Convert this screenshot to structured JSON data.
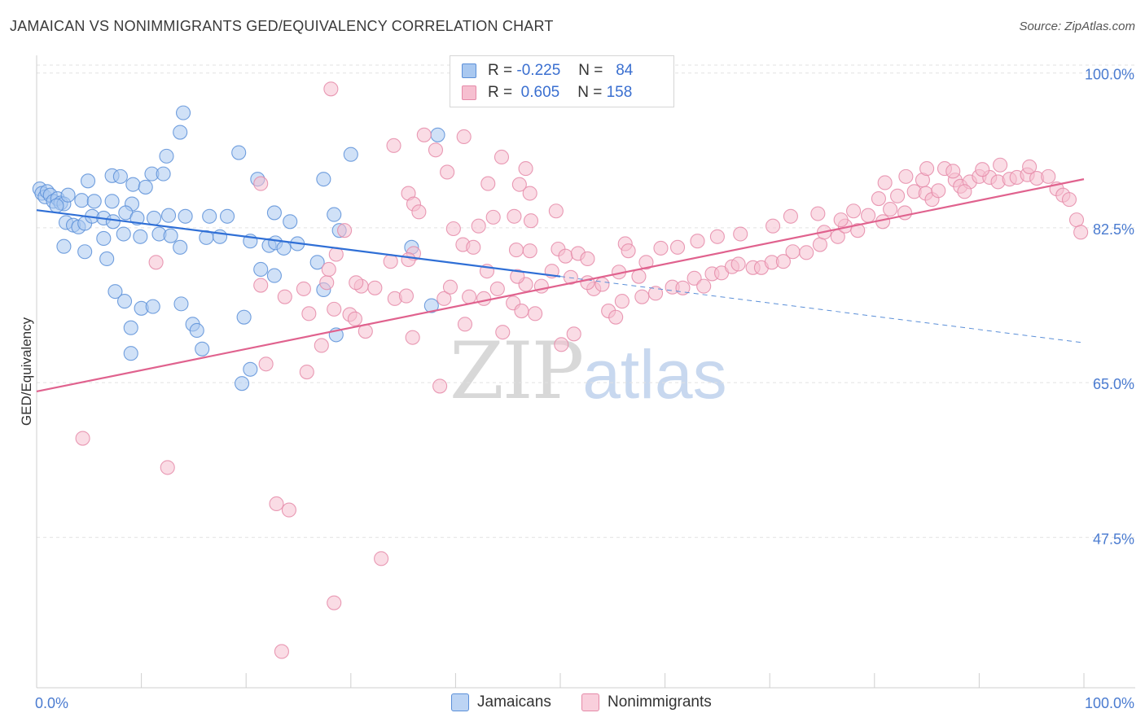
{
  "header": {
    "title": "JAMAICAN VS NONIMMIGRANTS GED/EQUIVALENCY CORRELATION CHART",
    "source": "Source: ZipAtlas.com"
  },
  "watermark": {
    "zip": "ZIP",
    "atlas": "atlas"
  },
  "legend": {
    "rows": [
      {
        "r_label": "R =",
        "r_value": "-0.225",
        "n_label": "N =",
        "n_value": "84",
        "color": "#a9c8f0",
        "border": "#5b8fd8"
      },
      {
        "r_label": "R =",
        "r_value": "0.605",
        "n_label": "N =",
        "n_value": "158",
        "color": "#f6bfd0",
        "border": "#e58aa8"
      }
    ]
  },
  "bottom_legend": {
    "items": [
      {
        "label": "Jamaicans",
        "color": "#bcd4f4",
        "border": "#5b8fd8"
      },
      {
        "label": "Nonimmigrants",
        "color": "#f9cfdc",
        "border": "#e58aa8"
      }
    ]
  },
  "chart_data": {
    "type": "scatter",
    "title": "JAMAICAN VS NONIMMIGRANTS GED/EQUIVALENCY CORRELATION CHART",
    "xlabel": "",
    "ylabel": "GED/Equivalency",
    "xlim": [
      0,
      100
    ],
    "ylim": [
      30.5,
      102
    ],
    "x_tick_labels": [
      "0.0%",
      "100.0%"
    ],
    "y_ticks": [
      {
        "value": 100,
        "label": "100.0%"
      },
      {
        "value": 82.5,
        "label": "82.5%"
      },
      {
        "value": 65,
        "label": "65.0%"
      },
      {
        "value": 47.5,
        "label": "47.5%"
      }
    ],
    "grid": "horizontal-dashed",
    "legend_position": "top-center",
    "series": [
      {
        "name": "Jamaicans",
        "color": "#5b8fd8",
        "fill": "#a9c8f0",
        "trend": {
          "x0": 0,
          "y0": 84.5,
          "x1": 50,
          "y1": 77.0,
          "dash_to_x": 100,
          "dash_to_y": 69.5
        },
        "points": [
          [
            0.3,
            86.9
          ],
          [
            0.5,
            86.4
          ],
          [
            0.8,
            86.0
          ],
          [
            1.0,
            86.6
          ],
          [
            1.3,
            86.2
          ],
          [
            1.6,
            85.5
          ],
          [
            2.0,
            85.8
          ],
          [
            2.3,
            85.3
          ],
          [
            2.6,
            85.2
          ],
          [
            3.0,
            86.2
          ],
          [
            1.9,
            85.0
          ],
          [
            4.3,
            85.6
          ],
          [
            5.5,
            85.5
          ],
          [
            7.2,
            85.5
          ],
          [
            9.1,
            85.2
          ],
          [
            2.8,
            83.1
          ],
          [
            3.5,
            82.8
          ],
          [
            4.0,
            82.6
          ],
          [
            4.6,
            83.0
          ],
          [
            5.3,
            83.8
          ],
          [
            6.4,
            83.6
          ],
          [
            7.3,
            83.2
          ],
          [
            8.5,
            84.2
          ],
          [
            9.6,
            83.6
          ],
          [
            11.2,
            83.6
          ],
          [
            12.6,
            83.9
          ],
          [
            14.2,
            83.8
          ],
          [
            16.5,
            83.8
          ],
          [
            18.2,
            83.8
          ],
          [
            22.7,
            84.2
          ],
          [
            24.2,
            83.2
          ],
          [
            2.6,
            80.4
          ],
          [
            4.6,
            79.8
          ],
          [
            6.4,
            81.3
          ],
          [
            8.3,
            81.8
          ],
          [
            9.9,
            81.5
          ],
          [
            11.7,
            81.8
          ],
          [
            12.8,
            81.6
          ],
          [
            13.7,
            80.3
          ],
          [
            16.2,
            81.4
          ],
          [
            17.5,
            81.5
          ],
          [
            20.4,
            81.0
          ],
          [
            22.2,
            80.5
          ],
          [
            24.9,
            80.7
          ],
          [
            22.8,
            80.8
          ],
          [
            23.6,
            80.2
          ],
          [
            6.7,
            79.0
          ],
          [
            7.2,
            88.4
          ],
          [
            8.0,
            88.3
          ],
          [
            9.2,
            87.4
          ],
          [
            10.4,
            87.1
          ],
          [
            11.0,
            88.6
          ],
          [
            12.1,
            88.6
          ],
          [
            13.7,
            93.3
          ],
          [
            12.4,
            90.6
          ],
          [
            14.0,
            95.5
          ],
          [
            21.1,
            88.0
          ],
          [
            27.4,
            88.0
          ],
          [
            19.3,
            91.0
          ],
          [
            4.9,
            87.8
          ],
          [
            7.5,
            75.3
          ],
          [
            8.4,
            74.2
          ],
          [
            10.0,
            73.4
          ],
          [
            13.8,
            73.9
          ],
          [
            14.9,
            71.6
          ],
          [
            9.0,
            71.2
          ],
          [
            15.3,
            70.9
          ],
          [
            15.8,
            68.8
          ],
          [
            19.8,
            72.4
          ],
          [
            21.4,
            77.8
          ],
          [
            22.7,
            77.1
          ],
          [
            26.8,
            78.6
          ],
          [
            27.4,
            75.5
          ],
          [
            28.4,
            84.0
          ],
          [
            28.9,
            82.2
          ],
          [
            35.8,
            80.3
          ],
          [
            37.7,
            73.7
          ],
          [
            28.6,
            70.4
          ],
          [
            20.4,
            66.5
          ],
          [
            19.6,
            64.9
          ],
          [
            9.0,
            68.3
          ],
          [
            38.3,
            93.0
          ],
          [
            30.0,
            90.8
          ],
          [
            11.1,
            73.6
          ]
        ]
      },
      {
        "name": "Nonimmigrants",
        "color": "#e58aa8",
        "fill": "#f6bfd0",
        "trend": {
          "x0": 0,
          "y0": 64.0,
          "x1": 100,
          "y1": 88.0
        },
        "points": [
          [
            28.1,
            98.2
          ],
          [
            34.1,
            91.8
          ],
          [
            37.0,
            93.0
          ],
          [
            39.2,
            88.8
          ],
          [
            43.1,
            87.5
          ],
          [
            46.1,
            87.4
          ],
          [
            47.1,
            86.4
          ],
          [
            21.4,
            87.5
          ],
          [
            35.5,
            86.4
          ],
          [
            36.0,
            85.2
          ],
          [
            36.5,
            84.3
          ],
          [
            43.6,
            83.7
          ],
          [
            45.6,
            83.8
          ],
          [
            47.2,
            83.3
          ],
          [
            49.6,
            84.4
          ],
          [
            42.2,
            82.7
          ],
          [
            39.8,
            82.4
          ],
          [
            29.4,
            82.2
          ],
          [
            36.0,
            79.6
          ],
          [
            35.5,
            78.9
          ],
          [
            28.6,
            79.5
          ],
          [
            33.8,
            78.7
          ],
          [
            40.7,
            80.6
          ],
          [
            41.7,
            80.3
          ],
          [
            45.8,
            80.0
          ],
          [
            47.1,
            79.9
          ],
          [
            49.8,
            80.1
          ],
          [
            50.5,
            79.3
          ],
          [
            51.7,
            79.6
          ],
          [
            56.2,
            80.7
          ],
          [
            56.5,
            79.9
          ],
          [
            52.6,
            79.0
          ],
          [
            11.4,
            78.6
          ],
          [
            21.4,
            76.0
          ],
          [
            27.7,
            76.3
          ],
          [
            31.0,
            75.9
          ],
          [
            32.3,
            75.7
          ],
          [
            34.2,
            74.5
          ],
          [
            35.3,
            74.8
          ],
          [
            38.9,
            74.5
          ],
          [
            41.3,
            74.7
          ],
          [
            42.7,
            74.5
          ],
          [
            45.5,
            74.0
          ],
          [
            46.3,
            73.1
          ],
          [
            47.6,
            72.8
          ],
          [
            53.2,
            75.6
          ],
          [
            54.6,
            73.1
          ],
          [
            55.9,
            74.2
          ],
          [
            57.8,
            74.7
          ],
          [
            59.1,
            75.1
          ],
          [
            60.7,
            75.8
          ],
          [
            61.7,
            75.7
          ],
          [
            62.8,
            76.8
          ],
          [
            63.7,
            75.9
          ],
          [
            64.5,
            77.3
          ],
          [
            65.4,
            77.4
          ],
          [
            66.4,
            78.1
          ],
          [
            67.0,
            78.4
          ],
          [
            68.4,
            78.0
          ],
          [
            69.2,
            78.0
          ],
          [
            70.2,
            78.6
          ],
          [
            71.3,
            78.7
          ],
          [
            72.2,
            79.8
          ],
          [
            73.5,
            79.7
          ],
          [
            74.8,
            80.6
          ],
          [
            75.2,
            82.0
          ],
          [
            76.5,
            81.5
          ],
          [
            77.2,
            82.7
          ],
          [
            78.4,
            82.2
          ],
          [
            79.4,
            83.9
          ],
          [
            80.8,
            83.2
          ],
          [
            81.5,
            84.6
          ],
          [
            82.9,
            84.2
          ],
          [
            83.8,
            86.6
          ],
          [
            84.9,
            86.4
          ],
          [
            85.5,
            85.7
          ],
          [
            86.1,
            86.7
          ],
          [
            87.7,
            87.9
          ],
          [
            88.2,
            87.2
          ],
          [
            89.1,
            87.7
          ],
          [
            90.0,
            88.3
          ],
          [
            91.0,
            88.2
          ],
          [
            91.8,
            87.7
          ],
          [
            92.9,
            88.0
          ],
          [
            93.6,
            88.2
          ],
          [
            94.6,
            88.5
          ],
          [
            95.5,
            88.1
          ],
          [
            96.6,
            88.3
          ],
          [
            97.4,
            86.9
          ],
          [
            98.0,
            86.2
          ],
          [
            98.6,
            85.7
          ],
          [
            99.3,
            83.4
          ],
          [
            99.7,
            82.0
          ],
          [
            88.6,
            86.6
          ],
          [
            86.7,
            89.2
          ],
          [
            84.6,
            87.9
          ],
          [
            82.2,
            86.1
          ],
          [
            80.4,
            85.8
          ],
          [
            78.0,
            84.4
          ],
          [
            76.8,
            83.4
          ],
          [
            74.6,
            84.1
          ],
          [
            72.0,
            83.8
          ],
          [
            70.3,
            82.7
          ],
          [
            67.2,
            81.8
          ],
          [
            65.0,
            81.5
          ],
          [
            63.1,
            81.0
          ],
          [
            61.2,
            80.3
          ],
          [
            59.6,
            80.2
          ],
          [
            58.2,
            78.6
          ],
          [
            57.5,
            77.0
          ],
          [
            55.6,
            77.5
          ],
          [
            54.0,
            76.1
          ],
          [
            52.6,
            76.3
          ],
          [
            51.0,
            76.9
          ],
          [
            49.2,
            77.6
          ],
          [
            48.2,
            75.9
          ],
          [
            46.7,
            76.1
          ],
          [
            44.0,
            75.6
          ],
          [
            30.5,
            76.3
          ],
          [
            27.9,
            77.8
          ],
          [
            25.5,
            75.6
          ],
          [
            23.7,
            74.7
          ],
          [
            26.0,
            72.8
          ],
          [
            28.4,
            73.3
          ],
          [
            29.9,
            72.7
          ],
          [
            30.4,
            72.2
          ],
          [
            27.2,
            69.2
          ],
          [
            31.4,
            70.8
          ],
          [
            35.9,
            70.1
          ],
          [
            40.9,
            71.6
          ],
          [
            44.5,
            70.7
          ],
          [
            50.1,
            69.3
          ],
          [
            51.3,
            70.5
          ],
          [
            55.3,
            72.4
          ],
          [
            21.9,
            67.1
          ],
          [
            25.8,
            66.2
          ],
          [
            38.5,
            64.6
          ],
          [
            39.5,
            75.8
          ],
          [
            43.0,
            77.6
          ],
          [
            45.9,
            77.0
          ],
          [
            4.4,
            58.7
          ],
          [
            12.5,
            55.4
          ],
          [
            22.9,
            51.3
          ],
          [
            24.1,
            50.6
          ],
          [
            32.9,
            45.1
          ],
          [
            28.4,
            40.1
          ],
          [
            23.4,
            34.6
          ],
          [
            46.7,
            89.2
          ],
          [
            44.4,
            90.5
          ],
          [
            40.8,
            92.8
          ],
          [
            38.1,
            91.3
          ],
          [
            92.0,
            89.6
          ],
          [
            94.8,
            89.4
          ],
          [
            90.3,
            89.1
          ],
          [
            87.5,
            88.9
          ],
          [
            85.0,
            89.2
          ],
          [
            83.0,
            88.3
          ],
          [
            81.0,
            87.6
          ]
        ]
      }
    ]
  }
}
